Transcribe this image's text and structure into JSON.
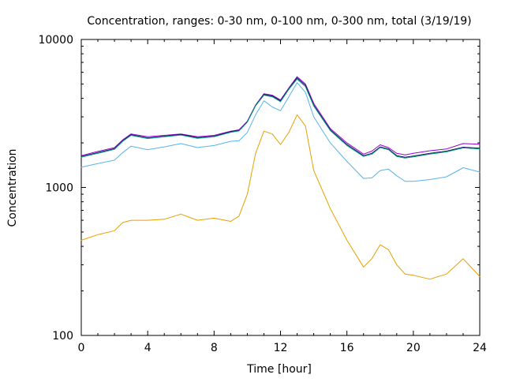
{
  "chart_data": {
    "type": "line",
    "title": "Concentration, ranges: 0-30 nm, 0-100 nm, 0-300 nm, total (3/19/19)",
    "xlabel": "Time [hour]",
    "ylabel": "Concentration",
    "xlim": [
      0,
      24
    ],
    "ylim": [
      100,
      10000
    ],
    "y_scale": "log",
    "x_ticks": [
      0,
      4,
      8,
      12,
      16,
      20,
      24
    ],
    "x_tick_labels": [
      "0",
      "4",
      "8",
      "12",
      "16",
      "20",
      "24"
    ],
    "y_ticks": [
      100,
      1000,
      10000
    ],
    "y_tick_labels": [
      "100",
      "1000",
      "10000"
    ],
    "grid": false,
    "legend": "none",
    "x": [
      0,
      1,
      2,
      2.5,
      3,
      4,
      5,
      6,
      7,
      8,
      9,
      9.5,
      10,
      10.5,
      11,
      11.5,
      12,
      12.5,
      13,
      13.5,
      14,
      15,
      16,
      17,
      17.5,
      18,
      18.5,
      19,
      19.5,
      20,
      21,
      22,
      23,
      24
    ],
    "series": [
      {
        "color": "#9400d3",
        "values": [
          1640,
          1750,
          1860,
          2100,
          2300,
          2200,
          2250,
          2300,
          2200,
          2250,
          2400,
          2450,
          2800,
          3600,
          4300,
          4200,
          3900,
          4700,
          5600,
          5000,
          3700,
          2500,
          2000,
          1680,
          1760,
          1940,
          1860,
          1700,
          1660,
          1700,
          1770,
          1820,
          1980,
          1960
        ]
      },
      {
        "color": "#101060",
        "values": [
          1620,
          1720,
          1830,
          2070,
          2270,
          2160,
          2220,
          2280,
          2170,
          2220,
          2380,
          2430,
          2780,
          3580,
          4250,
          4150,
          3850,
          4650,
          5500,
          4900,
          3600,
          2450,
          1950,
          1640,
          1700,
          1880,
          1820,
          1640,
          1600,
          1630,
          1700,
          1760,
          1870,
          1840
        ]
      },
      {
        "color": "#009e73",
        "values": [
          1600,
          1700,
          1810,
          2050,
          2250,
          2140,
          2200,
          2260,
          2150,
          2200,
          2360,
          2410,
          2760,
          3560,
          4200,
          4100,
          3800,
          4600,
          5400,
          4800,
          3550,
          2420,
          1920,
          1620,
          1680,
          1860,
          1800,
          1620,
          1580,
          1610,
          1680,
          1740,
          1850,
          1820
        ]
      },
      {
        "color": "#56b4e9",
        "values": [
          1370,
          1450,
          1530,
          1720,
          1900,
          1800,
          1880,
          1980,
          1860,
          1920,
          2050,
          2070,
          2350,
          3100,
          3850,
          3500,
          3300,
          4100,
          5100,
          4400,
          3000,
          2000,
          1500,
          1150,
          1160,
          1300,
          1330,
          1200,
          1100,
          1100,
          1130,
          1180,
          1360,
          1270
        ]
      },
      {
        "color": "#e69f00",
        "values": [
          440,
          480,
          510,
          580,
          600,
          600,
          610,
          660,
          600,
          620,
          590,
          640,
          900,
          1700,
          2400,
          2300,
          1950,
          2350,
          3100,
          2600,
          1300,
          720,
          440,
          290,
          330,
          410,
          380,
          300,
          260,
          255,
          240,
          260,
          330,
          250
        ]
      }
    ]
  }
}
